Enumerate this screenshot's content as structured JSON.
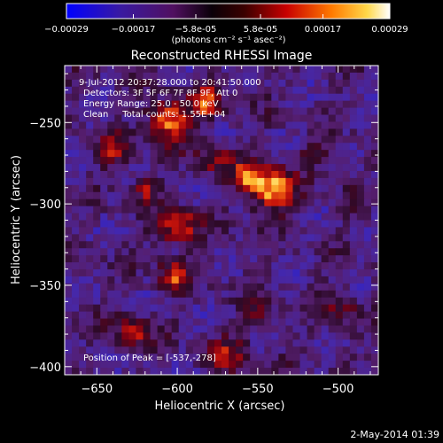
{
  "colorbar": {
    "ticks": [
      "-0.00029",
      "-0.00017",
      "-5.8e-05",
      "5.8e-05",
      "0.00017",
      "0.00029"
    ],
    "unit_label": "(photons cm⁻² s⁻¹ asec⁻²)",
    "range": [
      -0.00029,
      0.00029
    ]
  },
  "chart_data": {
    "type": "heatmap",
    "title": "Reconstructed RHESSI Image",
    "xlabel": "Heliocentric X (arcsec)",
    "ylabel": "Heliocentric Y (arcsec)",
    "xlim": [
      -670,
      -475
    ],
    "ylim": [
      -405,
      -215
    ],
    "xticks": [
      -650,
      -600,
      -550,
      -500
    ],
    "yticks": [
      -250,
      -300,
      -350,
      -400
    ],
    "xtick_labels": [
      "−650",
      "−600",
      "−550",
      "−500"
    ],
    "ytick_labels": [
      "−250",
      "−300",
      "−350",
      "−400"
    ],
    "annotations": [
      "9-Jul-2012 20:37:28.000 to 20:41:50.000",
      "Detectors: 3F 5F 6F 7F 8F 9F, Att 0",
      "Energy Range: 25.0 - 50.0 keV",
      "Clean     Total counts: 1.55E+04"
    ],
    "peak_label": "Position of Peak = [-537,-278]",
    "peak": [
      -537,
      -278
    ]
  },
  "footer": {
    "timestamp": "2-May-2014 01:39"
  }
}
